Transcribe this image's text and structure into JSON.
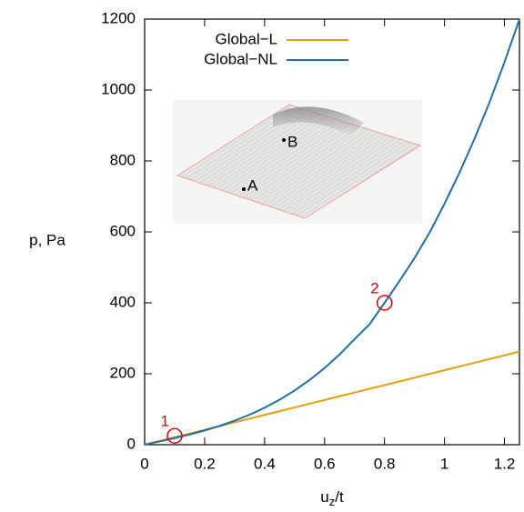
{
  "chart_data": {
    "type": "line",
    "xlabel": [
      "u",
      "z",
      "/t"
    ],
    "ylabel": "p, Pa",
    "x": [
      0,
      0.05,
      0.1,
      0.15,
      0.2,
      0.25,
      0.3,
      0.35,
      0.4,
      0.45,
      0.5,
      0.55,
      0.6,
      0.65,
      0.7,
      0.75,
      0.8,
      0.85,
      0.9,
      0.95,
      1,
      1.05,
      1.1,
      1.15,
      1.2,
      1.25
    ],
    "series": [
      {
        "name": "Global−L",
        "color": "#e0a010",
        "values": [
          0,
          10.5,
          21,
          31.5,
          42,
          52.5,
          63,
          73.5,
          84,
          94.5,
          105,
          115.5,
          126,
          136.5,
          147,
          157.5,
          168,
          178.5,
          189,
          199.5,
          210,
          220.5,
          231,
          241.5,
          252,
          262.5
        ]
      },
      {
        "name": "Global−NL",
        "color": "#1f6fa8",
        "values": [
          0,
          9.1,
          18.6,
          28.8,
          40.1,
          52.9,
          67.7,
          84.6,
          104.2,
          126.8,
          152.7,
          182.4,
          216.2,
          254.4,
          297.6,
          339.5,
          400,
          461.6,
          526.3,
          597.6,
          679.5,
          767.2,
          862.2,
          965.2,
          1078.4,
          1199.6
        ]
      }
    ],
    "markers": [
      {
        "x": 0.1,
        "y": 25,
        "label": "1",
        "color": "#e00000"
      },
      {
        "x": 0.8,
        "y": 400,
        "label": "2",
        "color": "#e00000"
      }
    ],
    "inset_labels": [
      "A",
      "B"
    ],
    "xlim": [
      0,
      1.25
    ],
    "ylim": [
      0,
      1200
    ],
    "xticks": [
      0,
      0.2,
      0.4,
      0.6,
      0.8,
      1,
      1.2
    ],
    "yticks": [
      0,
      200,
      400,
      600,
      800,
      1000,
      1200
    ],
    "legend": "top-left"
  }
}
